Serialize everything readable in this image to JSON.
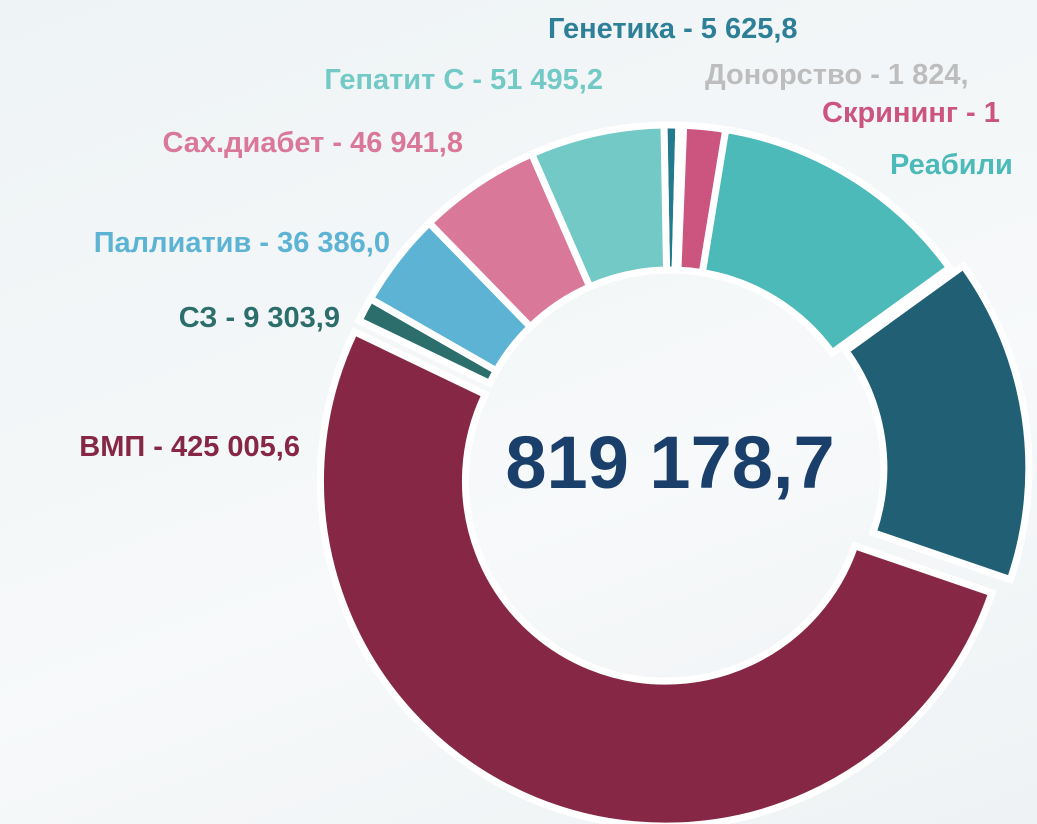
{
  "chart_data": {
    "type": "donut",
    "categories": [
      "Генетика - 5 625,8",
      "Донорство - 1 824,",
      "Скрининг - 1",
      "Реабили",
      null,
      "ВМП - 425 005,6",
      "СЗ - 9 303,9",
      "Паллиатив - 36 386,0",
      "Сах.диабет - 46 941,8",
      "Гепатит С - 51 495,2"
    ],
    "values": [
      5625.8,
      1824,
      16000,
      102000,
      124596,
      425005.6,
      9303.9,
      36386.0,
      46941.8,
      51495.2
    ],
    "colors": [
      "#237a8f",
      "#c4c4c4",
      "#cc5580",
      "#4bbab9",
      "#215f74",
      "#862746",
      "#2b6e6b",
      "#5cb3d3",
      "#d97898",
      "#72c9c6"
    ],
    "label_colors": [
      "#2e7f98",
      "#bdbdbd",
      "#cc5580",
      "#4bbab9",
      "#215f74",
      "#862746",
      "#2b6e6b",
      "#5cb3d3",
      "#d97898",
      "#72c9c6"
    ],
    "center_text": "819 178,7"
  }
}
